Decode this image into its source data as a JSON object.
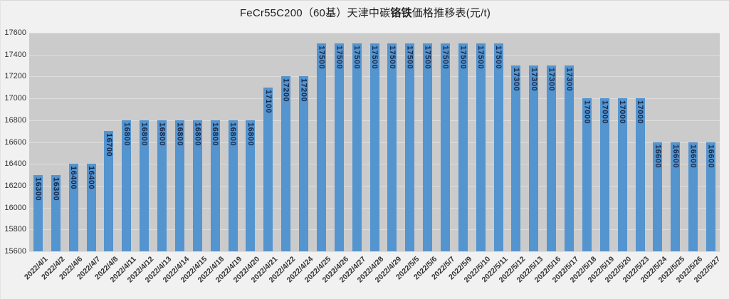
{
  "title": {
    "prefix": "FeCr55C200（60基）天津中碳",
    "bold": "铬铁",
    "suffix": "価格推移表(元/t)"
  },
  "chart_data": {
    "type": "bar",
    "title": "FeCr55C200（60基）天津中碳铬铁価格推移表(元/t)",
    "categories": [
      "2022/4/1",
      "2022/4/2",
      "2022/4/6",
      "2022/4/7",
      "2022/4/8",
      "2022/4/11",
      "2022/4/12",
      "2022/4/13",
      "2022/4/14",
      "2022/4/15",
      "2022/4/18",
      "2022/4/19",
      "2022/4/20",
      "2022/4/21",
      "2022/4/22",
      "2022/4/24",
      "2022/4/25",
      "2022/4/26",
      "2022/4/27",
      "2022/4/28",
      "2022/4/29",
      "2022/5/5",
      "2022/5/6",
      "2022/5/7",
      "2022/5/9",
      "2022/5/10",
      "2022/5/11",
      "2022/5/12",
      "2022/5/13",
      "2022/5/16",
      "2022/5/17",
      "2022/5/18",
      "2022/5/19",
      "2022/5/20",
      "2022/5/23",
      "2022/5/24",
      "2022/5/25",
      "2022/5/26",
      "2022/5/27"
    ],
    "values": [
      16300,
      16300,
      16400,
      16400,
      16700,
      16800,
      16800,
      16800,
      16800,
      16800,
      16800,
      16800,
      16800,
      17100,
      17200,
      17200,
      17500,
      17500,
      17500,
      17500,
      17500,
      17500,
      17500,
      17500,
      17500,
      17500,
      17500,
      17300,
      17300,
      17300,
      17300,
      17000,
      17000,
      17000,
      17000,
      16600,
      16600,
      16600,
      16600
    ],
    "xlabel": "",
    "ylabel": "",
    "ylim": [
      15600,
      17600
    ],
    "ytick_step": 200,
    "yticks": [
      "17600",
      "17400",
      "17200",
      "17000",
      "16800",
      "16600",
      "16400",
      "16200",
      "16000",
      "15800",
      "15600"
    ],
    "grid": true,
    "legend": false,
    "data_labels": "inside-end-rotated-90",
    "colors": {
      "bar": "#5494CF",
      "bar_label": "#17294A",
      "plot_bg": "#CBCBCB",
      "gridline": "#DDDDDD",
      "page_bg": "#F1F1F1",
      "axis_text": "#333333",
      "title_text": "#1F1F1F"
    }
  }
}
